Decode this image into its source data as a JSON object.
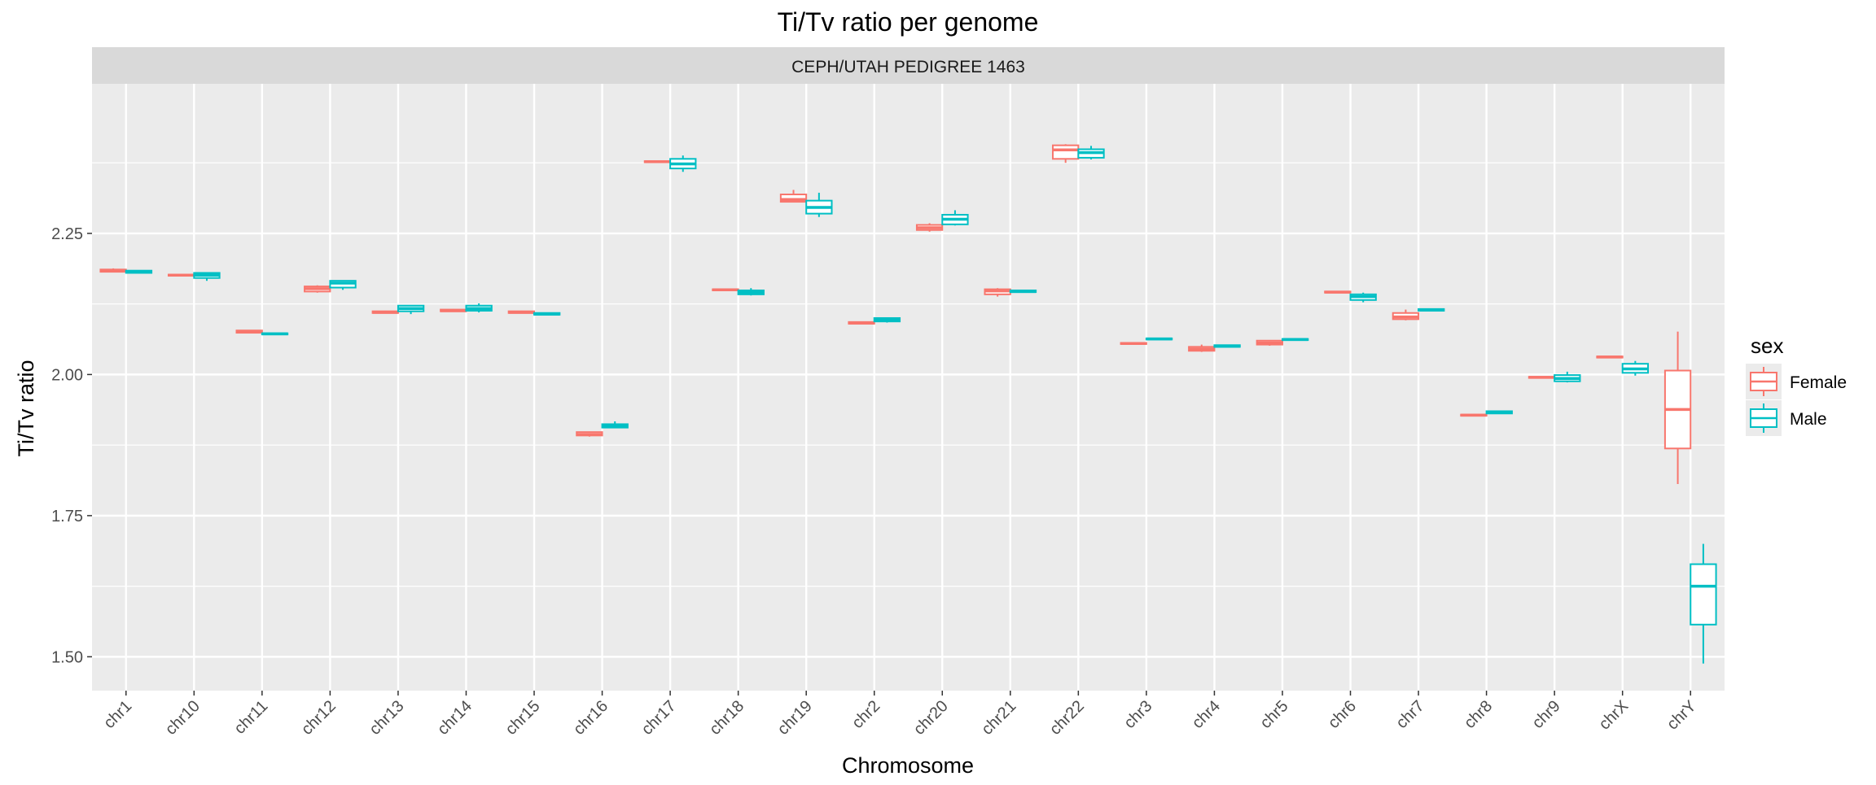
{
  "chart_data": {
    "type": "boxplot",
    "title": "Ti/Tv ratio per genome",
    "facet_label": "CEPH/UTAH PEDIGREE 1463",
    "xlabel": "Chromosome",
    "ylabel": "Ti/Tv ratio",
    "ylim": [
      1.44,
      2.515
    ],
    "yticks": [
      1.5,
      1.75,
      2.0,
      2.25
    ],
    "ytick_labels": [
      "1.50",
      "1.75",
      "2.00",
      "2.25"
    ],
    "grid": true,
    "legend": {
      "title": "sex",
      "position": "right",
      "entries": [
        "Female",
        "Male"
      ]
    },
    "colors": {
      "Female": "#F8766D",
      "Male": "#00BFC4",
      "panel": "#EBEBEB",
      "strip": "#D9D9D9",
      "grid": "#FFFFFF"
    },
    "categories": [
      "chr1",
      "chr10",
      "chr11",
      "chr12",
      "chr13",
      "chr14",
      "chr15",
      "chr16",
      "chr17",
      "chr18",
      "chr19",
      "chr2",
      "chr20",
      "chr21",
      "chr22",
      "chr3",
      "chr4",
      "chr5",
      "chr6",
      "chr7",
      "chr8",
      "chr9",
      "chrX",
      "chrY"
    ],
    "series": [
      {
        "name": "Female",
        "boxes": [
          {
            "min": 2.182,
            "q1": 2.182,
            "median": 2.184,
            "q3": 2.186,
            "max": 2.188
          },
          {
            "min": 2.174,
            "q1": 2.175,
            "median": 2.176,
            "q3": 2.177,
            "max": 2.178
          },
          {
            "min": 2.073,
            "q1": 2.074,
            "median": 2.076,
            "q3": 2.078,
            "max": 2.079
          },
          {
            "min": 2.145,
            "q1": 2.147,
            "median": 2.152,
            "q3": 2.156,
            "max": 2.158
          },
          {
            "min": 2.108,
            "q1": 2.109,
            "median": 2.11,
            "q3": 2.112,
            "max": 2.113
          },
          {
            "min": 2.111,
            "q1": 2.112,
            "median": 2.113,
            "q3": 2.115,
            "max": 2.116
          },
          {
            "min": 2.108,
            "q1": 2.109,
            "median": 2.11,
            "q3": 2.112,
            "max": 2.113
          },
          {
            "min": 1.89,
            "q1": 1.892,
            "median": 1.894,
            "q3": 1.898,
            "max": 1.899
          },
          {
            "min": 2.375,
            "q1": 2.376,
            "median": 2.377,
            "q3": 2.378,
            "max": 2.379
          },
          {
            "min": 2.148,
            "q1": 2.149,
            "median": 2.15,
            "q3": 2.151,
            "max": 2.152
          },
          {
            "min": 2.305,
            "q1": 2.306,
            "median": 2.31,
            "q3": 2.319,
            "max": 2.327
          },
          {
            "min": 2.089,
            "q1": 2.09,
            "median": 2.091,
            "q3": 2.093,
            "max": 2.094
          },
          {
            "min": 2.253,
            "q1": 2.256,
            "median": 2.26,
            "q3": 2.265,
            "max": 2.268
          },
          {
            "min": 2.138,
            "q1": 2.142,
            "median": 2.148,
            "q3": 2.151,
            "max": 2.153
          },
          {
            "min": 2.375,
            "q1": 2.382,
            "median": 2.398,
            "q3": 2.406,
            "max": 2.408
          },
          {
            "min": 2.053,
            "q1": 2.054,
            "median": 2.055,
            "q3": 2.056,
            "max": 2.057
          },
          {
            "min": 2.04,
            "q1": 2.042,
            "median": 2.045,
            "q3": 2.049,
            "max": 2.053
          },
          {
            "min": 2.051,
            "q1": 2.053,
            "median": 2.056,
            "q3": 2.06,
            "max": 2.061
          },
          {
            "min": 2.144,
            "q1": 2.145,
            "median": 2.146,
            "q3": 2.147,
            "max": 2.148
          },
          {
            "min": 2.096,
            "q1": 2.098,
            "median": 2.102,
            "q3": 2.109,
            "max": 2.115
          },
          {
            "min": 1.926,
            "q1": 1.927,
            "median": 1.928,
            "q3": 1.929,
            "max": 1.93
          },
          {
            "min": 1.993,
            "q1": 1.994,
            "median": 1.995,
            "q3": 1.996,
            "max": 1.997
          },
          {
            "min": 2.029,
            "q1": 2.03,
            "median": 2.031,
            "q3": 2.032,
            "max": 2.033
          },
          {
            "min": 1.806,
            "q1": 1.869,
            "median": 1.938,
            "q3": 2.007,
            "max": 2.076
          }
        ]
      },
      {
        "name": "Male",
        "boxes": [
          {
            "min": 2.179,
            "q1": 2.18,
            "median": 2.182,
            "q3": 2.184,
            "max": 2.185
          },
          {
            "min": 2.166,
            "q1": 2.171,
            "median": 2.176,
            "q3": 2.18,
            "max": 2.181
          },
          {
            "min": 2.07,
            "q1": 2.071,
            "median": 2.072,
            "q3": 2.073,
            "max": 2.074
          },
          {
            "min": 2.15,
            "q1": 2.154,
            "median": 2.162,
            "q3": 2.166,
            "max": 2.167
          },
          {
            "min": 2.107,
            "q1": 2.112,
            "median": 2.117,
            "q3": 2.122,
            "max": 2.123
          },
          {
            "min": 2.11,
            "q1": 2.113,
            "median": 2.117,
            "q3": 2.122,
            "max": 2.126
          },
          {
            "min": 2.105,
            "q1": 2.106,
            "median": 2.107,
            "q3": 2.109,
            "max": 2.11
          },
          {
            "min": 1.905,
            "q1": 1.906,
            "median": 1.909,
            "q3": 1.912,
            "max": 1.917
          },
          {
            "min": 2.359,
            "q1": 2.365,
            "median": 2.373,
            "q3": 2.382,
            "max": 2.388
          },
          {
            "min": 2.14,
            "q1": 2.142,
            "median": 2.145,
            "q3": 2.149,
            "max": 2.153
          },
          {
            "min": 2.279,
            "q1": 2.285,
            "median": 2.296,
            "q3": 2.308,
            "max": 2.322
          },
          {
            "min": 2.092,
            "q1": 2.094,
            "median": 2.097,
            "q3": 2.1,
            "max": 2.101
          },
          {
            "min": 2.264,
            "q1": 2.266,
            "median": 2.275,
            "q3": 2.283,
            "max": 2.291
          },
          {
            "min": 2.145,
            "q1": 2.146,
            "median": 2.147,
            "q3": 2.149,
            "max": 2.15
          },
          {
            "min": 2.381,
            "q1": 2.384,
            "median": 2.393,
            "q3": 2.399,
            "max": 2.405
          },
          {
            "min": 2.061,
            "q1": 2.062,
            "median": 2.063,
            "q3": 2.064,
            "max": 2.065
          },
          {
            "min": 2.048,
            "q1": 2.049,
            "median": 2.05,
            "q3": 2.052,
            "max": 2.053
          },
          {
            "min": 2.06,
            "q1": 2.061,
            "median": 2.062,
            "q3": 2.063,
            "max": 2.064
          },
          {
            "min": 2.128,
            "q1": 2.132,
            "median": 2.138,
            "q3": 2.142,
            "max": 2.145
          },
          {
            "min": 2.112,
            "q1": 2.113,
            "median": 2.114,
            "q3": 2.116,
            "max": 2.117
          },
          {
            "min": 1.93,
            "q1": 1.931,
            "median": 1.933,
            "q3": 1.935,
            "max": 1.936
          },
          {
            "min": 1.986,
            "q1": 1.988,
            "median": 1.993,
            "q3": 1.999,
            "max": 2.005
          },
          {
            "min": 1.998,
            "q1": 2.003,
            "median": 2.01,
            "q3": 2.019,
            "max": 2.024
          },
          {
            "min": 1.488,
            "q1": 1.557,
            "median": 1.625,
            "q3": 1.664,
            "max": 1.7
          }
        ]
      }
    ]
  }
}
